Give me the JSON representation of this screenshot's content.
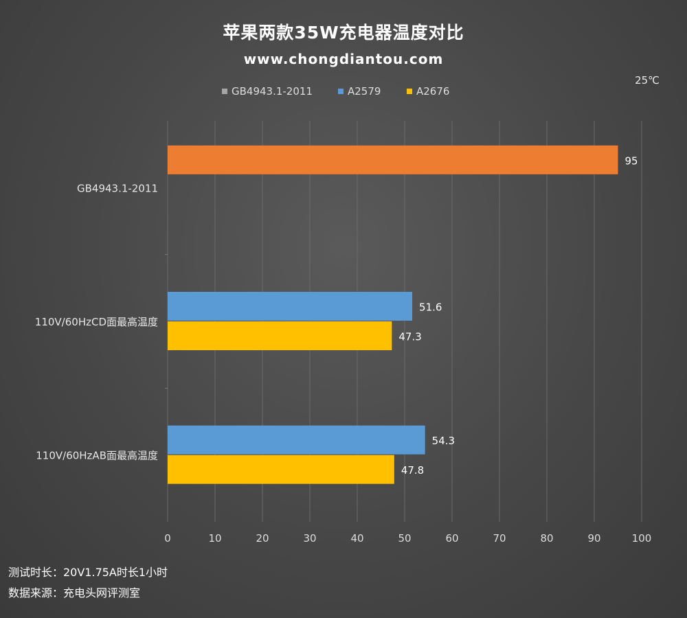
{
  "header": {
    "title": "苹果两款35W充电器温度对比",
    "subtitle": "www.chongdiantou.com",
    "unit": "25℃"
  },
  "footer": {
    "line1": "测试时长：20V1.75A时长1小时",
    "line2": "数据来源：充电头网评测室"
  },
  "chart_data": {
    "type": "bar",
    "orientation": "horizontal",
    "categories": [
      "GB4943.1-2011",
      "110V/60HzCD面最高温度",
      "110V/60HzAB面最高温度"
    ],
    "series": [
      {
        "name": "GB4943.1-2011",
        "legend_color": "#a6a6a6",
        "bar_color": "#ed7d31",
        "values": [
          95,
          null,
          null
        ]
      },
      {
        "name": "A2579",
        "legend_color": "#5b9bd5",
        "bar_color": "#5b9bd5",
        "values": [
          null,
          51.6,
          54.3
        ]
      },
      {
        "name": "A2676",
        "legend_color": "#ffc000",
        "bar_color": "#ffc000",
        "values": [
          null,
          47.3,
          47.8
        ]
      }
    ],
    "xlim": [
      0,
      100
    ],
    "xticks": [
      0,
      10,
      20,
      30,
      40,
      50,
      60,
      70,
      80,
      90,
      100
    ],
    "grid": true,
    "legend_position": "top"
  }
}
